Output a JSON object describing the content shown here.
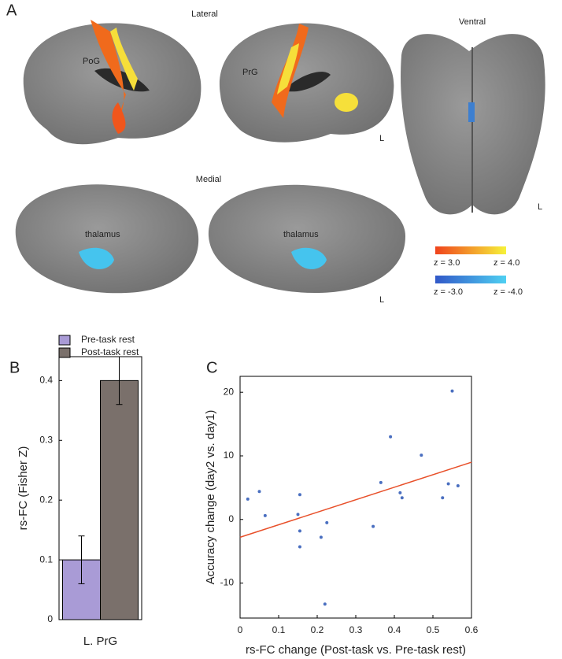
{
  "panel_a": {
    "label": "A",
    "views": {
      "lateral": "Lateral",
      "medial": "Medial",
      "ventral": "Ventral"
    },
    "annotations": [
      "PoG",
      "PrG",
      "thalamus",
      "thalamus"
    ],
    "hemisphere_marks": [
      "L",
      "L",
      "L"
    ],
    "colorbar": {
      "positive": [
        "z = 3.0",
        "z = 4.0"
      ],
      "negative": [
        "z = -3.0",
        "z = -4.0"
      ]
    }
  },
  "chart_data": [
    {
      "type": "bar",
      "panel": "B",
      "ylabel": "rs-FC (Fisher Z)",
      "categories": [
        "L. PrG"
      ],
      "series": [
        {
          "name": "Pre-task rest",
          "color": "#a99bd6",
          "values": [
            0.1
          ],
          "errors": [
            0.04
          ]
        },
        {
          "name": "Post-task rest",
          "color": "#7a706b",
          "values": [
            0.4
          ],
          "errors": [
            0.04
          ]
        }
      ],
      "ylim": [
        0,
        0.44
      ],
      "yticks": [
        0,
        0.1,
        0.2,
        0.3,
        0.4
      ]
    },
    {
      "type": "scatter",
      "panel": "C",
      "xlabel": "rs-FC change (Post-task vs. Pre-task rest)",
      "ylabel": "Accuracy change (day2 vs. day1)",
      "color": "#4a6fc0",
      "x": [
        0.02,
        0.05,
        0.065,
        0.15,
        0.155,
        0.155,
        0.155,
        0.21,
        0.22,
        0.225,
        0.345,
        0.365,
        0.39,
        0.415,
        0.42,
        0.47,
        0.525,
        0.54,
        0.55,
        0.565
      ],
      "y": [
        3.2,
        4.4,
        0.6,
        0.8,
        3.9,
        -1.8,
        -4.3,
        -2.8,
        -13.3,
        -0.5,
        -1.1,
        5.8,
        13.0,
        4.2,
        3.4,
        10.1,
        3.4,
        5.6,
        20.2,
        5.3
      ],
      "fit_line": {
        "x": [
          0,
          0.6
        ],
        "y": [
          -2.8,
          9.0
        ],
        "color": "#e8502a"
      },
      "xlim": [
        0,
        0.6
      ],
      "xticks": [
        0,
        0.1,
        0.2,
        0.3,
        0.4,
        0.5,
        0.6
      ],
      "ylim": [
        -15.5,
        22.5
      ],
      "yticks": [
        -10,
        0,
        10,
        20
      ]
    }
  ]
}
